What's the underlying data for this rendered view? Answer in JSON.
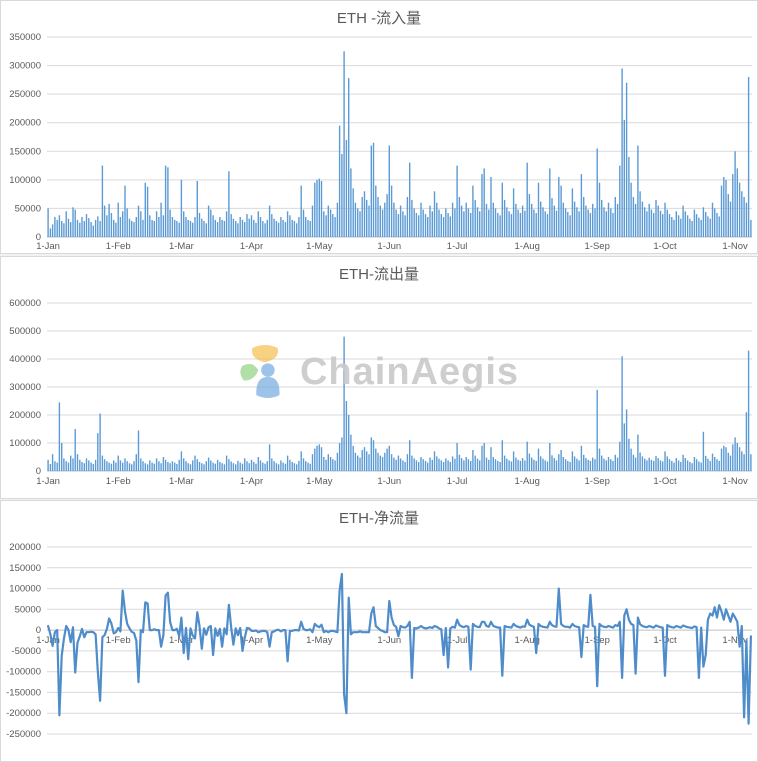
{
  "watermark": {
    "text": "ChainAegis",
    "logo_colors": {
      "petal_top": "#f6bb4a",
      "petal_left": "#8ccf7e",
      "person": "#7fb0e2"
    }
  },
  "colors": {
    "bar": "#5b9bd5",
    "line": "#4e8cca",
    "grid": "#d9d9d9",
    "axis": "#bfbfbf",
    "text": "#595959"
  },
  "chart_data": [
    {
      "type": "bar",
      "title": "ETH -流入量",
      "ylabel": "",
      "xlabel": "",
      "ylim": [
        0,
        350000
      ],
      "grid": true,
      "color": "#5b9bd5",
      "yticks": [
        "0",
        "50000",
        "100000",
        "150000",
        "200000",
        "250000",
        "300000",
        "350000"
      ],
      "xticks": [
        {
          "label": "1-Jan",
          "i": 0
        },
        {
          "label": "1-Feb",
          "i": 31
        },
        {
          "label": "1-Mar",
          "i": 59
        },
        {
          "label": "1-Apr",
          "i": 90
        },
        {
          "label": "1-May",
          "i": 120
        },
        {
          "label": "1-Jun",
          "i": 151
        },
        {
          "label": "1-Jul",
          "i": 181
        },
        {
          "label": "1-Aug",
          "i": 212
        },
        {
          "label": "1-Sep",
          "i": 243
        },
        {
          "label": "1-Oct",
          "i": 273
        },
        {
          "label": "1-Nov",
          "i": 304
        }
      ],
      "values": [
        50000,
        15000,
        22000,
        35000,
        30000,
        38000,
        28000,
        24000,
        45000,
        32000,
        26000,
        52000,
        48000,
        30000,
        25000,
        35000,
        28000,
        40000,
        33000,
        26000,
        20000,
        30000,
        36000,
        28000,
        125000,
        55000,
        38000,
        58000,
        42000,
        30000,
        25000,
        60000,
        35000,
        45000,
        90000,
        50000,
        32000,
        28000,
        26000,
        35000,
        55000,
        45000,
        30000,
        95000,
        88000,
        38000,
        30000,
        28000,
        45000,
        35000,
        60000,
        38000,
        125000,
        122000,
        48000,
        35000,
        30000,
        28000,
        25000,
        100000,
        45000,
        35000,
        30000,
        28000,
        25000,
        35000,
        98000,
        42000,
        32000,
        28000,
        24000,
        55000,
        48000,
        38000,
        30000,
        26000,
        35000,
        30000,
        28000,
        45000,
        115000,
        40000,
        32000,
        28000,
        24000,
        35000,
        30000,
        26000,
        40000,
        32000,
        38000,
        30000,
        25000,
        45000,
        35000,
        28000,
        24000,
        30000,
        55000,
        40000,
        32000,
        28000,
        25000,
        35000,
        30000,
        26000,
        45000,
        38000,
        30000,
        28000,
        24000,
        35000,
        90000,
        48000,
        35000,
        30000,
        28000,
        55000,
        95000,
        100000,
        102000,
        98000,
        45000,
        38000,
        55000,
        48000,
        40000,
        35000,
        60000,
        195000,
        145000,
        325000,
        170000,
        278000,
        120000,
        85000,
        60000,
        50000,
        45000,
        70000,
        80000,
        65000,
        55000,
        160000,
        165000,
        90000,
        70000,
        55000,
        48000,
        60000,
        75000,
        160000,
        90000,
        60000,
        48000,
        40000,
        55000,
        45000,
        38000,
        70000,
        130000,
        65000,
        50000,
        42000,
        38000,
        60000,
        48000,
        40000,
        35000,
        55000,
        45000,
        80000,
        60000,
        48000,
        40000,
        35000,
        50000,
        42000,
        36000,
        60000,
        50000,
        125000,
        70000,
        55000,
        45000,
        60000,
        50000,
        42000,
        90000,
        65000,
        52000,
        45000,
        110000,
        120000,
        58000,
        48000,
        105000,
        60000,
        50000,
        42000,
        38000,
        95000,
        65000,
        52000,
        45000,
        40000,
        85000,
        58000,
        48000,
        42000,
        55000,
        46000,
        130000,
        75000,
        58000,
        48000,
        42000,
        95000,
        62000,
        52000,
        45000,
        40000,
        120000,
        68000,
        55000,
        46000,
        105000,
        90000,
        60000,
        50000,
        44000,
        38000,
        85000,
        62000,
        52000,
        45000,
        110000,
        70000,
        55000,
        48000,
        42000,
        58000,
        50000,
        155000,
        95000,
        65000,
        52000,
        45000,
        60000,
        50000,
        42000,
        70000,
        58000,
        125000,
        295000,
        205000,
        270000,
        140000,
        95000,
        70000,
        58000,
        160000,
        80000,
        62000,
        52000,
        45000,
        58000,
        48000,
        42000,
        65000,
        55000,
        46000,
        40000,
        60000,
        48000,
        40000,
        35000,
        30000,
        45000,
        38000,
        32000,
        55000,
        45000,
        38000,
        32000,
        28000,
        48000,
        40000,
        34000,
        30000,
        52000,
        44000,
        36000,
        32000,
        60000,
        50000,
        42000,
        36000,
        90000,
        105000,
        100000,
        75000,
        62000,
        110000,
        150000,
        120000,
        95000,
        80000,
        70000,
        60000,
        280000,
        30000
      ]
    },
    {
      "type": "bar",
      "title": "ETH-流出量",
      "ylabel": "",
      "xlabel": "",
      "ylim": [
        0,
        600000
      ],
      "grid": true,
      "color": "#5b9bd5",
      "yticks": [
        "0",
        "100000",
        "200000",
        "300000",
        "400000",
        "500000",
        "600000"
      ],
      "xticks": [
        {
          "label": "1-Jan",
          "i": 0
        },
        {
          "label": "1-Feb",
          "i": 31
        },
        {
          "label": "1-Mar",
          "i": 59
        },
        {
          "label": "1-Apr",
          "i": 90
        },
        {
          "label": "1-May",
          "i": 120
        },
        {
          "label": "1-Jun",
          "i": 151
        },
        {
          "label": "1-Jul",
          "i": 181
        },
        {
          "label": "1-Aug",
          "i": 212
        },
        {
          "label": "1-Sep",
          "i": 243
        },
        {
          "label": "1-Oct",
          "i": 273
        },
        {
          "label": "1-Nov",
          "i": 304
        }
      ],
      "values": [
        40000,
        25000,
        60000,
        35000,
        30000,
        245000,
        100000,
        45000,
        35000,
        30000,
        55000,
        45000,
        150000,
        60000,
        40000,
        32000,
        28000,
        45000,
        38000,
        30000,
        25000,
        40000,
        135000,
        205000,
        55000,
        42000,
        35000,
        30000,
        26000,
        38000,
        30000,
        55000,
        38000,
        30000,
        45000,
        35000,
        28000,
        24000,
        35000,
        60000,
        145000,
        45000,
        35000,
        28000,
        24000,
        38000,
        30000,
        26000,
        45000,
        35000,
        28000,
        50000,
        40000,
        32000,
        28000,
        35000,
        30000,
        25000,
        40000,
        70000,
        45000,
        35000,
        28000,
        24000,
        38000,
        55000,
        42000,
        32000,
        28000,
        24000,
        35000,
        48000,
        38000,
        30000,
        26000,
        40000,
        32000,
        28000,
        24000,
        55000,
        42000,
        34000,
        28000,
        24000,
        36000,
        30000,
        26000,
        45000,
        35000,
        28000,
        40000,
        32000,
        26000,
        50000,
        38000,
        30000,
        26000,
        35000,
        95000,
        45000,
        35000,
        28000,
        24000,
        38000,
        30000,
        26000,
        55000,
        40000,
        32000,
        28000,
        24000,
        36000,
        70000,
        45000,
        35000,
        30000,
        26000,
        60000,
        80000,
        90000,
        95000,
        85000,
        50000,
        40000,
        60000,
        50000,
        42000,
        38000,
        65000,
        100000,
        120000,
        480000,
        250000,
        200000,
        130000,
        90000,
        65000,
        55000,
        48000,
        75000,
        85000,
        70000,
        60000,
        120000,
        110000,
        80000,
        65000,
        55000,
        50000,
        65000,
        80000,
        90000,
        60000,
        48000,
        40000,
        55000,
        45000,
        38000,
        32000,
        60000,
        110000,
        55000,
        45000,
        38000,
        32000,
        50000,
        42000,
        36000,
        30000,
        48000,
        40000,
        70000,
        52000,
        44000,
        38000,
        32000,
        45000,
        38000,
        32000,
        52000,
        44000,
        100000,
        58000,
        46000,
        38000,
        50000,
        42000,
        36000,
        75000,
        55000,
        44000,
        38000,
        90000,
        100000,
        48000,
        40000,
        85000,
        50000,
        42000,
        36000,
        32000,
        110000,
        55000,
        44000,
        38000,
        34000,
        70000,
        48000,
        40000,
        36000,
        46000,
        38000,
        105000,
        62000,
        48000,
        40000,
        36000,
        80000,
        52000,
        44000,
        38000,
        34000,
        100000,
        56000,
        46000,
        38000,
        60000,
        75000,
        50000,
        42000,
        36000,
        32000,
        70000,
        52000,
        44000,
        38000,
        90000,
        58000,
        46000,
        40000,
        36000,
        48000,
        42000,
        290000,
        80000,
        55000,
        44000,
        38000,
        50000,
        42000,
        36000,
        58000,
        48000,
        105000,
        410000,
        170000,
        220000,
        115000,
        80000,
        58000,
        48000,
        130000,
        66000,
        52000,
        44000,
        38000,
        48000,
        40000,
        36000,
        54000,
        46000,
        38000,
        34000,
        70000,
        52000,
        42000,
        36000,
        30000,
        46000,
        38000,
        32000,
        58000,
        46000,
        38000,
        32000,
        28000,
        50000,
        42000,
        34000,
        30000,
        140000,
        54000,
        44000,
        36000,
        62000,
        50000,
        42000,
        36000,
        80000,
        90000,
        85000,
        65000,
        55000,
        95000,
        120000,
        100000,
        85000,
        70000,
        60000,
        210000,
        430000,
        60000
      ]
    },
    {
      "type": "line",
      "title": "ETH-净流量",
      "ylabel": "",
      "xlabel": "",
      "ylim": [
        -250000,
        200000
      ],
      "grid": true,
      "color": "#4e8cca",
      "yticks": [
        "-250000",
        "-200000",
        "-150000",
        "-100000",
        "-50000",
        "0",
        "50000",
        "100000",
        "150000",
        "200000"
      ],
      "xticks": [
        {
          "label": "1-Jan",
          "i": 0
        },
        {
          "label": "1-Feb",
          "i": 31
        },
        {
          "label": "1-Mar",
          "i": 59
        },
        {
          "label": "1-Apr",
          "i": 90
        },
        {
          "label": "1-May",
          "i": 120
        },
        {
          "label": "1-Jun",
          "i": 151
        },
        {
          "label": "1-Jul",
          "i": 181
        },
        {
          "label": "1-Aug",
          "i": 212
        },
        {
          "label": "1-Sep",
          "i": 243
        },
        {
          "label": "1-Oct",
          "i": 273
        },
        {
          "label": "1-Nov",
          "i": 304
        }
      ],
      "values": [
        10000,
        -10000,
        -38000,
        -5000,
        0,
        -205000,
        -62000,
        -21000,
        10000,
        0,
        -29000,
        7000,
        -102000,
        -30000,
        -15000,
        3000,
        -17000,
        -5000,
        -5000,
        -4000,
        -5000,
        -10000,
        -99000,
        -170000,
        -17000,
        -12000,
        3000,
        28000,
        16000,
        -8000,
        -5000,
        5000,
        -3000,
        95000,
        45000,
        15000,
        4000,
        -4000,
        -7000,
        -25000,
        -125000,
        0,
        -5000,
        67000,
        64000,
        0,
        0,
        2000,
        0,
        0,
        -40000,
        -12000,
        83000,
        90000,
        20000,
        0,
        0,
        3000,
        -15000,
        30000,
        -55000,
        5000,
        -70000,
        4000,
        -13000,
        -20000,
        43000,
        10000,
        -45000,
        4000,
        -11000,
        7000,
        10000,
        -60000,
        4000,
        -14000,
        3000,
        -40000,
        4000,
        -10000,
        61000,
        6000,
        -35000,
        4000,
        -12000,
        5000,
        -50000,
        -19000,
        5000,
        4000,
        -2000,
        -2000,
        -1000,
        -5000,
        -3000,
        -2000,
        -2000,
        -5000,
        -40000,
        -5000,
        -3000,
        0,
        1000,
        -3000,
        0,
        0,
        -75000,
        -2000,
        -2000,
        0,
        0,
        -1000,
        20000,
        3000,
        0,
        0,
        2000,
        -5000,
        15000,
        10000,
        7000,
        13000,
        -5000,
        -2000,
        -5000,
        -2000,
        -2000,
        -3000,
        -5000,
        95000,
        135000,
        -155000,
        -200000,
        78000,
        -10000,
        -5000,
        -5000,
        -5000,
        -3000,
        -5000,
        -5000,
        -5000,
        -5000,
        40000,
        55000,
        10000,
        5000,
        0,
        -2000,
        -5000,
        -5000,
        70000,
        30000,
        12000,
        8000,
        -15000,
        10000,
        7000,
        6000,
        10000,
        20000,
        -115000,
        5000,
        4000,
        6000,
        10000,
        6000,
        4000,
        5000,
        7000,
        5000,
        10000,
        8000,
        4000,
        2000,
        -60000,
        5000,
        -90000,
        4000,
        8000,
        6000,
        25000,
        12000,
        9000,
        7000,
        10000,
        8000,
        -95000,
        15000,
        10000,
        8000,
        7000,
        20000,
        20000,
        10000,
        8000,
        20000,
        10000,
        8000,
        6000,
        6000,
        -110000,
        10000,
        8000,
        7000,
        6000,
        15000,
        10000,
        8000,
        6000,
        9000,
        8000,
        25000,
        13000,
        10000,
        8000,
        -55000,
        15000,
        10000,
        8000,
        7000,
        6000,
        20000,
        12000,
        9000,
        8000,
        100000,
        15000,
        10000,
        8000,
        8000,
        6000,
        15000,
        10000,
        8000,
        7000,
        -65000,
        12000,
        9000,
        8000,
        85000,
        10000,
        8000,
        -135000,
        15000,
        10000,
        8000,
        7000,
        10000,
        8000,
        6000,
        12000,
        10000,
        20000,
        -115000,
        35000,
        50000,
        25000,
        15000,
        12000,
        -105000,
        30000,
        14000,
        10000,
        8000,
        7000,
        10000,
        8000,
        6000,
        11000,
        9000,
        7000,
        6000,
        -110000,
        12000,
        9000,
        7000,
        6000,
        10000,
        8000,
        6000,
        11000,
        9000,
        7000,
        6000,
        5000,
        9000,
        7000,
        -115000,
        6000,
        -88000,
        -60000,
        25000,
        40000,
        35000,
        55000,
        30000,
        60000,
        45000,
        25000,
        50000,
        35000,
        20000,
        40000,
        30000,
        20000,
        -40000,
        10000,
        -210000,
        -25000,
        -225000,
        -15000
      ]
    }
  ]
}
